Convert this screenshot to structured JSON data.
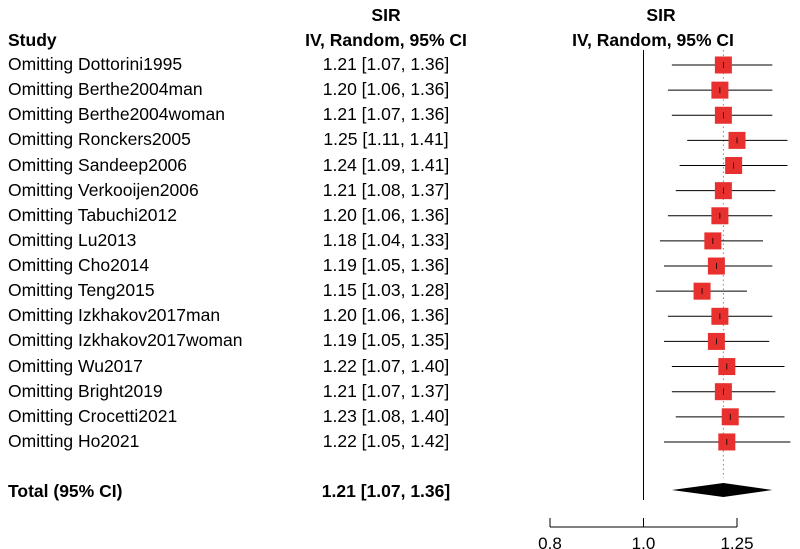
{
  "header": {
    "study_label": "Study",
    "sir_label": "SIR",
    "ci_label": "IV, Random, 95% CI",
    "plot_sir_label": "SIR",
    "plot_ci_label": "IV, Random, 95% CI"
  },
  "chart_data": {
    "type": "forest",
    "studies": [
      {
        "name": "Omitting Dottorini1995",
        "sir": 1.21,
        "lower": 1.07,
        "upper": 1.36,
        "ci_text": "1.21 [1.07, 1.36]"
      },
      {
        "name": "Omitting Berthe2004man",
        "sir": 1.2,
        "lower": 1.06,
        "upper": 1.36,
        "ci_text": "1.20 [1.06, 1.36]"
      },
      {
        "name": "Omitting Berthe2004woman",
        "sir": 1.21,
        "lower": 1.07,
        "upper": 1.36,
        "ci_text": "1.21 [1.07, 1.36]"
      },
      {
        "name": "Omitting Ronckers2005",
        "sir": 1.25,
        "lower": 1.11,
        "upper": 1.41,
        "ci_text": "1.25 [1.11, 1.41]"
      },
      {
        "name": "Omitting Sandeep2006",
        "sir": 1.24,
        "lower": 1.09,
        "upper": 1.41,
        "ci_text": "1.24 [1.09, 1.41]"
      },
      {
        "name": "Omitting Verkooijen2006",
        "sir": 1.21,
        "lower": 1.08,
        "upper": 1.37,
        "ci_text": "1.21 [1.08, 1.37]"
      },
      {
        "name": "Omitting Tabuchi2012",
        "sir": 1.2,
        "lower": 1.06,
        "upper": 1.36,
        "ci_text": "1.20 [1.06, 1.36]"
      },
      {
        "name": "Omitting Lu2013",
        "sir": 1.18,
        "lower": 1.04,
        "upper": 1.33,
        "ci_text": "1.18 [1.04, 1.33]"
      },
      {
        "name": "Omitting Cho2014",
        "sir": 1.19,
        "lower": 1.05,
        "upper": 1.36,
        "ci_text": "1.19 [1.05, 1.36]"
      },
      {
        "name": "Omitting Teng2015",
        "sir": 1.15,
        "lower": 1.03,
        "upper": 1.28,
        "ci_text": "1.15 [1.03, 1.28]"
      },
      {
        "name": "Omitting Izkhakov2017man",
        "sir": 1.2,
        "lower": 1.06,
        "upper": 1.36,
        "ci_text": "1.20 [1.06, 1.36]"
      },
      {
        "name": "Omitting Izkhakov2017woman",
        "sir": 1.19,
        "lower": 1.05,
        "upper": 1.35,
        "ci_text": "1.19 [1.05, 1.35]"
      },
      {
        "name": "Omitting Wu2017",
        "sir": 1.22,
        "lower": 1.07,
        "upper": 1.4,
        "ci_text": "1.22 [1.07, 1.40]"
      },
      {
        "name": "Omitting Bright2019",
        "sir": 1.21,
        "lower": 1.07,
        "upper": 1.37,
        "ci_text": "1.21 [1.07, 1.37]"
      },
      {
        "name": "Omitting Crocetti2021",
        "sir": 1.23,
        "lower": 1.08,
        "upper": 1.4,
        "ci_text": "1.23 [1.08, 1.40]"
      },
      {
        "name": "Omitting Ho2021",
        "sir": 1.22,
        "lower": 1.05,
        "upper": 1.42,
        "ci_text": "1.22 [1.05, 1.42]"
      }
    ],
    "total": {
      "name": "Total (95% CI)",
      "sir": 1.21,
      "lower": 1.07,
      "upper": 1.36,
      "ci_text": "1.21 [1.07, 1.36]"
    },
    "x_ticks": [
      0.8,
      1.0,
      1.25
    ],
    "x_tick_labels": [
      "0.8",
      "1.0",
      "1.25"
    ],
    "x_scale": "log",
    "reference_line": 1.0,
    "colors": {
      "box": "#e8312e",
      "diamond": "#000000",
      "line": "#000000",
      "pooled_line": "#888888"
    }
  }
}
